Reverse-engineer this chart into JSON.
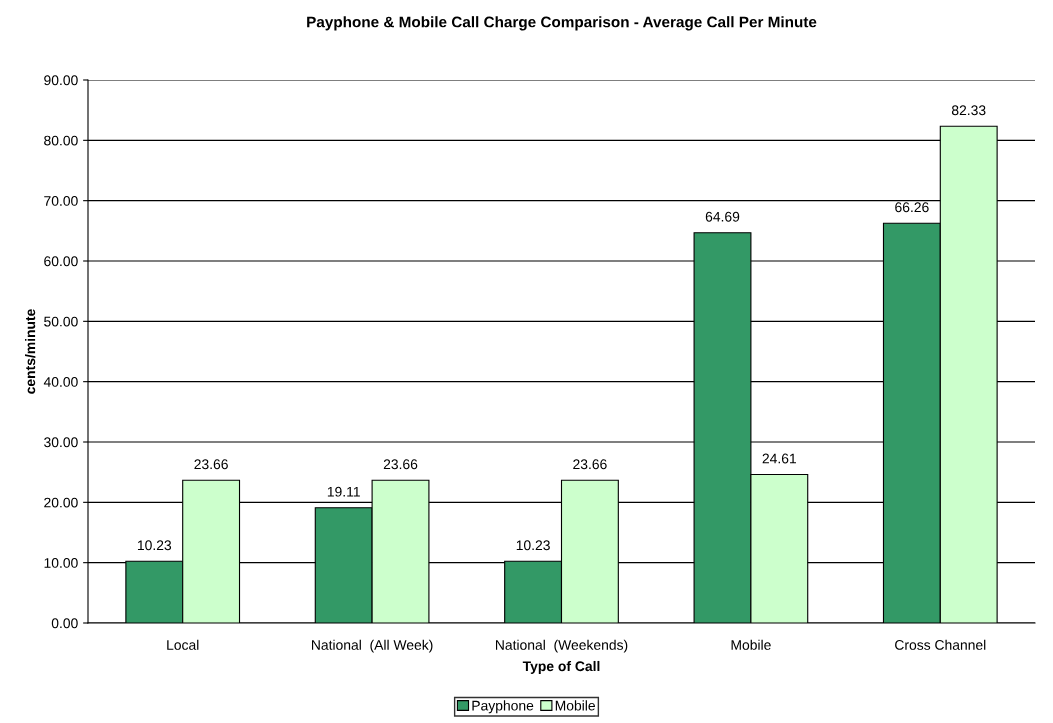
{
  "chart_data": {
    "type": "bar",
    "title": "Payphone & Mobile Call Charge Comparison - Average Call Per Minute",
    "xlabel": "Type of Call",
    "ylabel": "cents/minute",
    "categories": [
      "Local",
      "National  (All Week)",
      "National  (Weekends)",
      "Mobile",
      "Cross Channel"
    ],
    "series": [
      {
        "name": "Payphone",
        "color": "#339966",
        "values": [
          10.23,
          19.11,
          10.23,
          64.69,
          66.26
        ]
      },
      {
        "name": "Mobile",
        "color": "#ccffcc",
        "values": [
          23.66,
          23.66,
          23.66,
          24.61,
          82.33
        ]
      }
    ],
    "ylim": [
      0,
      90
    ],
    "yticks": [
      {
        "value": 0,
        "label": "0.00"
      },
      {
        "value": 10,
        "label": "10.00"
      },
      {
        "value": 20,
        "label": "20.00"
      },
      {
        "value": 30,
        "label": "30.00"
      },
      {
        "value": 40,
        "label": "40.00"
      },
      {
        "value": 50,
        "label": "50.00"
      },
      {
        "value": 60,
        "label": "60.00"
      },
      {
        "value": 70,
        "label": "70.00"
      },
      {
        "value": 80,
        "label": "80.00"
      },
      {
        "value": 90,
        "label": "90.00"
      }
    ],
    "grid": "y",
    "legend": "bottom",
    "data_labels": true
  }
}
